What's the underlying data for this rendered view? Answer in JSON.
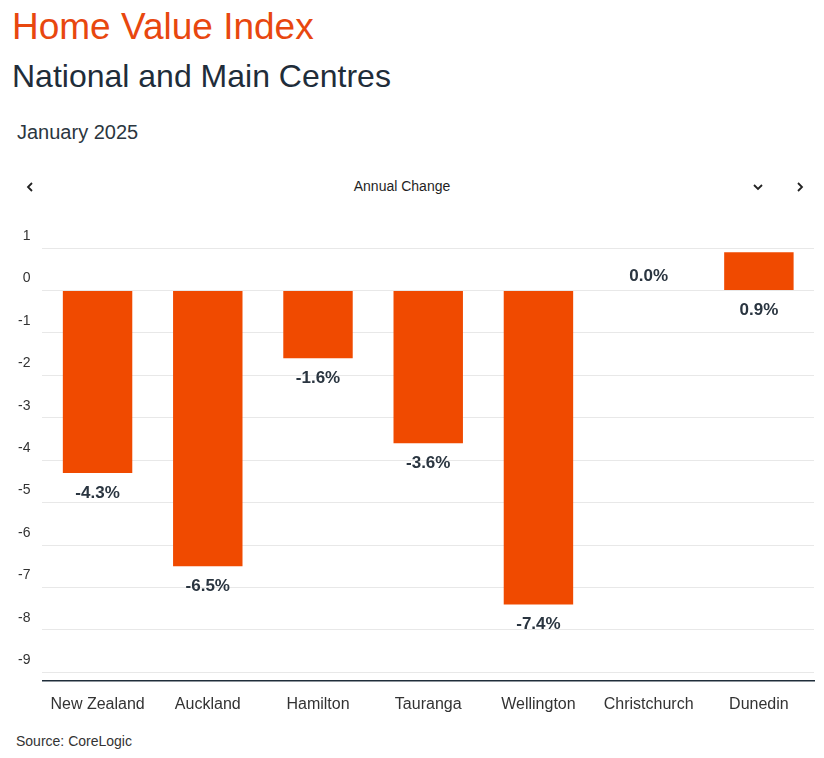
{
  "chart_data": {
    "type": "bar",
    "title": "Home Value Index",
    "subtitle": "National and Main Centres",
    "annotations": [
      "January 2025",
      "Annual Change",
      "Source: CoreLogic"
    ],
    "categories": [
      "New Zealand",
      "Auckland",
      "Hamilton",
      "Tauranga",
      "Wellington",
      "Christchurch",
      "Dunedin"
    ],
    "values": [
      -4.3,
      -6.5,
      -1.6,
      -3.6,
      -7.4,
      0.0,
      0.9
    ],
    "value_labels": [
      "-4.3%",
      "-6.5%",
      "-1.6%",
      "-3.6%",
      "-7.4%",
      "0.0%",
      "0.9%"
    ],
    "color": "#f04a00",
    "ylim": [
      -9.2,
      1
    ],
    "yticks": [
      -9,
      -8,
      -7,
      -6,
      -5,
      -4,
      -3,
      -2,
      -1,
      0,
      1
    ],
    "grid": true,
    "data_labels": true
  }
}
